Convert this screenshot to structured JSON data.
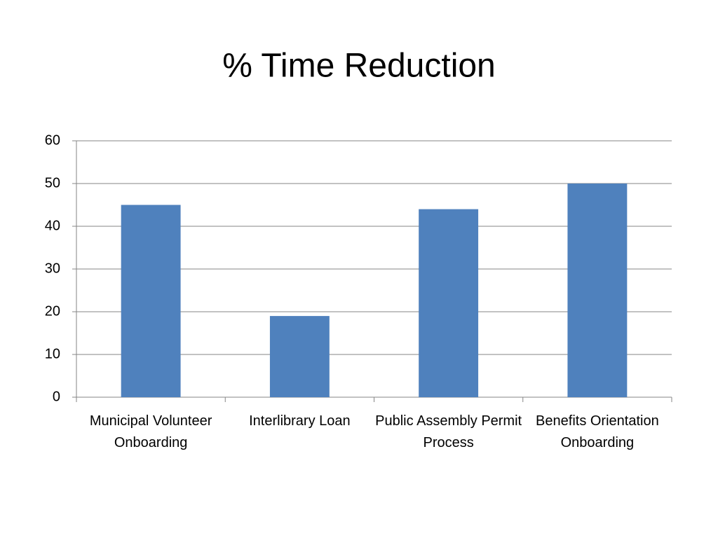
{
  "chart_data": {
    "type": "bar",
    "title": "% Time Reduction",
    "categories": [
      "Municipal Volunteer Onboarding",
      "Interlibrary Loan",
      "Public Assembly Permit Process",
      "Benefits Orientation Onboarding"
    ],
    "values": [
      45,
      19,
      44,
      50
    ],
    "color": "#4f81bd",
    "ylim": [
      0,
      60
    ],
    "yticks": [
      0,
      10,
      20,
      30,
      40,
      50,
      60
    ],
    "grid": true
  }
}
